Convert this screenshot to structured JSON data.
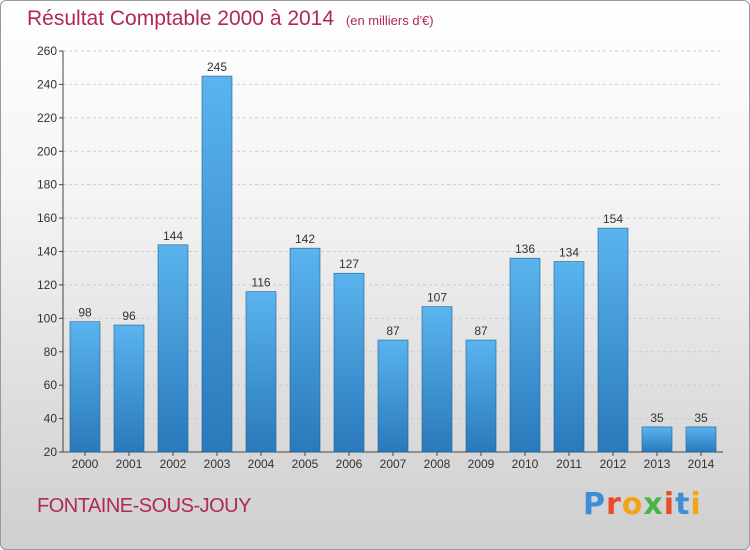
{
  "header": {
    "title": "Résultat Comptable 2000 à 2014",
    "subtitle": "(en milliers d'€)"
  },
  "footer": {
    "town": "FONTAINE-SOUS-JOUY",
    "logo_letters": [
      "P",
      "r",
      "o",
      "x",
      "i",
      "t",
      "i"
    ]
  },
  "colors": {
    "title": "#b0285a",
    "bar_light": "#5ab4ee",
    "bar_dark": "#2a79bb",
    "logo": [
      "#3a8fd6",
      "#e94b2d",
      "#f2a416",
      "#4bb34b",
      "#e94b2d",
      "#3a8fd6",
      "#f2a416"
    ]
  },
  "chart_data": {
    "type": "bar",
    "title": "Résultat Comptable 2000 à 2014",
    "xlabel": "",
    "ylabel": "",
    "ylim": [
      20,
      260
    ],
    "yticks": [
      20,
      40,
      60,
      80,
      100,
      120,
      140,
      160,
      180,
      200,
      220,
      240,
      260
    ],
    "grid": true,
    "categories": [
      "2000",
      "2001",
      "2002",
      "2003",
      "2004",
      "2005",
      "2006",
      "2007",
      "2008",
      "2009",
      "2010",
      "2011",
      "2012",
      "2013",
      "2014"
    ],
    "values": [
      98,
      96,
      144,
      245,
      116,
      142,
      127,
      87,
      107,
      87,
      136,
      134,
      154,
      35,
      35
    ]
  }
}
